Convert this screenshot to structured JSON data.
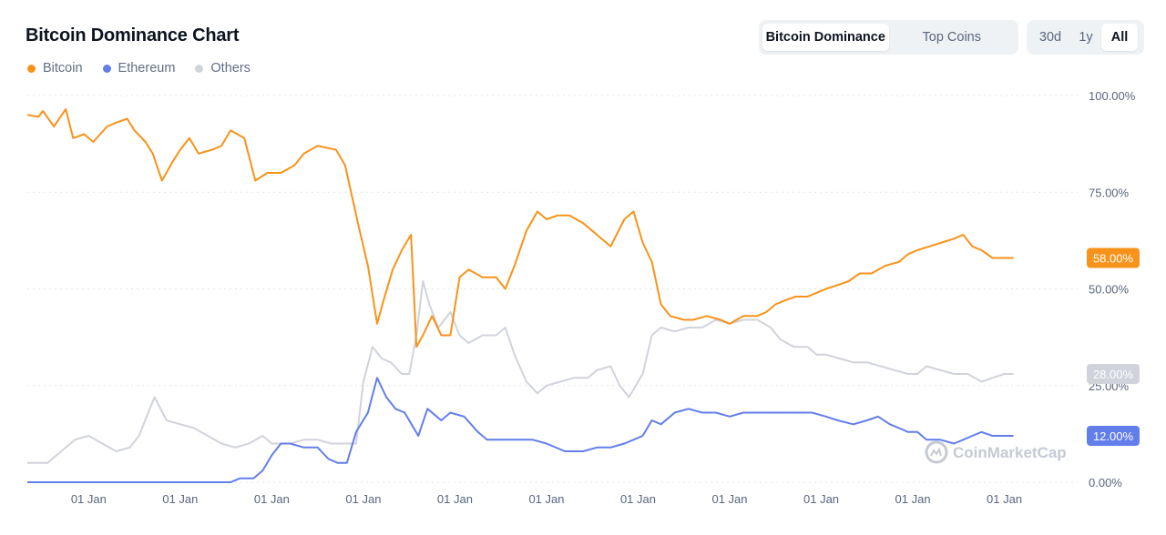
{
  "title": "Bitcoin Dominance Chart",
  "tabs": [
    {
      "label": "Bitcoin Dominance",
      "active": true
    },
    {
      "label": "Top Coins",
      "active": false
    }
  ],
  "ranges": [
    {
      "label": "30d",
      "active": false
    },
    {
      "label": "1y",
      "active": false
    },
    {
      "label": "All",
      "active": true
    }
  ],
  "watermark": "CoinMarketCap",
  "colors": {
    "bitcoin": "#f7931a",
    "ethereum": "#627eea",
    "others": "#d1d3dc",
    "grid": "#e3e6ea"
  },
  "chart_data": {
    "type": "line",
    "title": "Bitcoin Dominance Chart",
    "xlabel": "",
    "ylabel": "",
    "ylim": [
      0,
      100
    ],
    "y_ticks": [
      "0.00%",
      "25.00%",
      "50.00%",
      "75.00%",
      "100.00%"
    ],
    "x_ticks": [
      "01 Jan",
      "01 Jan",
      "01 Jan",
      "01 Jan",
      "01 Jan",
      "01 Jan",
      "01 Jan",
      "01 Jan",
      "01 Jan",
      "01 Jan",
      "01 Jan"
    ],
    "x_range": [
      2013.33,
      2024.8
    ],
    "x_tick_years": [
      2014,
      2015,
      2016,
      2017,
      2018,
      2019,
      2020,
      2021,
      2022,
      2023,
      2024
    ],
    "grid": true,
    "legend_position": "top-left",
    "series": [
      {
        "name": "Bitcoin",
        "color": "#f7931a",
        "last_label": "58.00%",
        "points": [
          [
            2013.33,
            95
          ],
          [
            2013.45,
            94.5
          ],
          [
            2013.5,
            96
          ],
          [
            2013.62,
            92
          ],
          [
            2013.75,
            96.5
          ],
          [
            2013.83,
            89
          ],
          [
            2013.95,
            90
          ],
          [
            2014.05,
            88
          ],
          [
            2014.2,
            92
          ],
          [
            2014.3,
            93
          ],
          [
            2014.42,
            94
          ],
          [
            2014.5,
            91
          ],
          [
            2014.62,
            88
          ],
          [
            2014.7,
            85
          ],
          [
            2014.8,
            78
          ],
          [
            2014.92,
            83
          ],
          [
            2015.0,
            86
          ],
          [
            2015.1,
            89
          ],
          [
            2015.2,
            85
          ],
          [
            2015.35,
            86
          ],
          [
            2015.45,
            87
          ],
          [
            2015.55,
            91
          ],
          [
            2015.7,
            89
          ],
          [
            2015.82,
            78
          ],
          [
            2015.95,
            80
          ],
          [
            2016.1,
            80
          ],
          [
            2016.25,
            82
          ],
          [
            2016.35,
            85
          ],
          [
            2016.5,
            87
          ],
          [
            2016.7,
            86
          ],
          [
            2016.8,
            82
          ],
          [
            2016.95,
            66
          ],
          [
            2017.05,
            56
          ],
          [
            2017.15,
            41
          ],
          [
            2017.22,
            47
          ],
          [
            2017.32,
            55
          ],
          [
            2017.42,
            60
          ],
          [
            2017.52,
            64
          ],
          [
            2017.58,
            35
          ],
          [
            2017.65,
            38
          ],
          [
            2017.75,
            43
          ],
          [
            2017.85,
            38
          ],
          [
            2017.95,
            38
          ],
          [
            2018.05,
            53
          ],
          [
            2018.15,
            55
          ],
          [
            2018.3,
            53
          ],
          [
            2018.45,
            53
          ],
          [
            2018.55,
            50
          ],
          [
            2018.65,
            56
          ],
          [
            2018.78,
            65
          ],
          [
            2018.9,
            70
          ],
          [
            2019.0,
            68
          ],
          [
            2019.12,
            69
          ],
          [
            2019.25,
            69
          ],
          [
            2019.4,
            67
          ],
          [
            2019.55,
            64
          ],
          [
            2019.7,
            61
          ],
          [
            2019.85,
            68
          ],
          [
            2019.95,
            70
          ],
          [
            2020.05,
            62
          ],
          [
            2020.15,
            57
          ],
          [
            2020.25,
            46
          ],
          [
            2020.35,
            43
          ],
          [
            2020.5,
            42
          ],
          [
            2020.6,
            42
          ],
          [
            2020.75,
            43
          ],
          [
            2020.9,
            42
          ],
          [
            2021.0,
            41
          ],
          [
            2021.15,
            43
          ],
          [
            2021.3,
            43
          ],
          [
            2021.4,
            44
          ],
          [
            2021.5,
            46
          ],
          [
            2021.6,
            47
          ],
          [
            2021.72,
            48
          ],
          [
            2021.85,
            48
          ],
          [
            2021.95,
            49
          ],
          [
            2022.05,
            50
          ],
          [
            2022.18,
            51
          ],
          [
            2022.3,
            52
          ],
          [
            2022.42,
            54
          ],
          [
            2022.55,
            54
          ],
          [
            2022.7,
            56
          ],
          [
            2022.85,
            57
          ],
          [
            2022.95,
            59
          ],
          [
            2023.05,
            60
          ],
          [
            2023.18,
            61
          ],
          [
            2023.32,
            62
          ],
          [
            2023.45,
            63
          ],
          [
            2023.55,
            64
          ],
          [
            2023.65,
            61
          ],
          [
            2023.75,
            60
          ],
          [
            2023.87,
            58
          ],
          [
            2024.0,
            58
          ],
          [
            2024.1,
            58
          ]
        ]
      },
      {
        "name": "Ethereum",
        "color": "#627eea",
        "last_label": "12.00%",
        "points": [
          [
            2013.33,
            0
          ],
          [
            2015.55,
            0
          ],
          [
            2015.65,
            1
          ],
          [
            2015.8,
            1
          ],
          [
            2015.9,
            3
          ],
          [
            2016.0,
            7
          ],
          [
            2016.1,
            10
          ],
          [
            2016.2,
            10
          ],
          [
            2016.35,
            9
          ],
          [
            2016.5,
            9
          ],
          [
            2016.62,
            6
          ],
          [
            2016.72,
            5
          ],
          [
            2016.82,
            5
          ],
          [
            2016.92,
            13
          ],
          [
            2017.05,
            18
          ],
          [
            2017.15,
            27
          ],
          [
            2017.25,
            22
          ],
          [
            2017.35,
            19
          ],
          [
            2017.45,
            18
          ],
          [
            2017.55,
            14
          ],
          [
            2017.6,
            12
          ],
          [
            2017.7,
            19
          ],
          [
            2017.85,
            16
          ],
          [
            2017.95,
            18
          ],
          [
            2018.1,
            17
          ],
          [
            2018.25,
            13
          ],
          [
            2018.35,
            11
          ],
          [
            2018.5,
            11
          ],
          [
            2018.7,
            11
          ],
          [
            2018.85,
            11
          ],
          [
            2019.0,
            10
          ],
          [
            2019.2,
            8
          ],
          [
            2019.4,
            8
          ],
          [
            2019.55,
            9
          ],
          [
            2019.7,
            9
          ],
          [
            2019.85,
            10
          ],
          [
            2019.95,
            11
          ],
          [
            2020.05,
            12
          ],
          [
            2020.15,
            16
          ],
          [
            2020.25,
            15
          ],
          [
            2020.4,
            18
          ],
          [
            2020.55,
            19
          ],
          [
            2020.7,
            18
          ],
          [
            2020.85,
            18
          ],
          [
            2021.0,
            17
          ],
          [
            2021.15,
            18
          ],
          [
            2021.3,
            18
          ],
          [
            2021.45,
            18
          ],
          [
            2021.6,
            18
          ],
          [
            2021.75,
            18
          ],
          [
            2021.9,
            18
          ],
          [
            2022.05,
            17
          ],
          [
            2022.18,
            16
          ],
          [
            2022.35,
            15
          ],
          [
            2022.5,
            16
          ],
          [
            2022.62,
            17
          ],
          [
            2022.75,
            15
          ],
          [
            2022.85,
            14
          ],
          [
            2022.95,
            13
          ],
          [
            2023.05,
            13
          ],
          [
            2023.15,
            11
          ],
          [
            2023.3,
            11
          ],
          [
            2023.45,
            10
          ],
          [
            2023.55,
            11
          ],
          [
            2023.65,
            12
          ],
          [
            2023.75,
            13
          ],
          [
            2023.87,
            12
          ],
          [
            2024.0,
            12
          ],
          [
            2024.1,
            12
          ]
        ]
      },
      {
        "name": "Others",
        "color": "#d1d3dc",
        "last_label": "28.00%",
        "points": [
          [
            2013.33,
            5
          ],
          [
            2013.55,
            5
          ],
          [
            2013.7,
            8
          ],
          [
            2013.85,
            11
          ],
          [
            2014.0,
            12
          ],
          [
            2014.15,
            10
          ],
          [
            2014.3,
            8
          ],
          [
            2014.45,
            9
          ],
          [
            2014.55,
            12
          ],
          [
            2014.65,
            18
          ],
          [
            2014.72,
            22
          ],
          [
            2014.85,
            16
          ],
          [
            2015.0,
            15
          ],
          [
            2015.15,
            14
          ],
          [
            2015.3,
            12
          ],
          [
            2015.45,
            10
          ],
          [
            2015.6,
            9
          ],
          [
            2015.75,
            10
          ],
          [
            2015.9,
            12
          ],
          [
            2016.0,
            10
          ],
          [
            2016.1,
            10
          ],
          [
            2016.2,
            10
          ],
          [
            2016.35,
            11
          ],
          [
            2016.5,
            11
          ],
          [
            2016.65,
            10
          ],
          [
            2016.8,
            10
          ],
          [
            2016.92,
            10
          ],
          [
            2017.0,
            26
          ],
          [
            2017.1,
            35
          ],
          [
            2017.2,
            32
          ],
          [
            2017.3,
            31
          ],
          [
            2017.42,
            28
          ],
          [
            2017.5,
            28
          ],
          [
            2017.58,
            38
          ],
          [
            2017.65,
            52
          ],
          [
            2017.72,
            46
          ],
          [
            2017.82,
            40
          ],
          [
            2017.95,
            44
          ],
          [
            2018.05,
            38
          ],
          [
            2018.15,
            36
          ],
          [
            2018.3,
            38
          ],
          [
            2018.45,
            38
          ],
          [
            2018.55,
            40
          ],
          [
            2018.65,
            33
          ],
          [
            2018.78,
            26
          ],
          [
            2018.9,
            23
          ],
          [
            2019.0,
            25
          ],
          [
            2019.15,
            26
          ],
          [
            2019.3,
            27
          ],
          [
            2019.45,
            27
          ],
          [
            2019.55,
            29
          ],
          [
            2019.7,
            30
          ],
          [
            2019.8,
            25
          ],
          [
            2019.9,
            22
          ],
          [
            2019.95,
            24
          ],
          [
            2020.05,
            28
          ],
          [
            2020.15,
            38
          ],
          [
            2020.25,
            40
          ],
          [
            2020.4,
            39
          ],
          [
            2020.55,
            40
          ],
          [
            2020.7,
            40
          ],
          [
            2020.85,
            42
          ],
          [
            2021.0,
            41
          ],
          [
            2021.15,
            42
          ],
          [
            2021.3,
            42
          ],
          [
            2021.45,
            40
          ],
          [
            2021.55,
            37
          ],
          [
            2021.7,
            35
          ],
          [
            2021.85,
            35
          ],
          [
            2021.95,
            33
          ],
          [
            2022.05,
            33
          ],
          [
            2022.2,
            32
          ],
          [
            2022.35,
            31
          ],
          [
            2022.5,
            31
          ],
          [
            2022.65,
            30
          ],
          [
            2022.8,
            29
          ],
          [
            2022.95,
            28
          ],
          [
            2023.05,
            28
          ],
          [
            2023.15,
            30
          ],
          [
            2023.3,
            29
          ],
          [
            2023.45,
            28
          ],
          [
            2023.6,
            28
          ],
          [
            2023.75,
            26
          ],
          [
            2023.87,
            27
          ],
          [
            2024.0,
            28
          ],
          [
            2024.1,
            28
          ]
        ]
      }
    ]
  }
}
